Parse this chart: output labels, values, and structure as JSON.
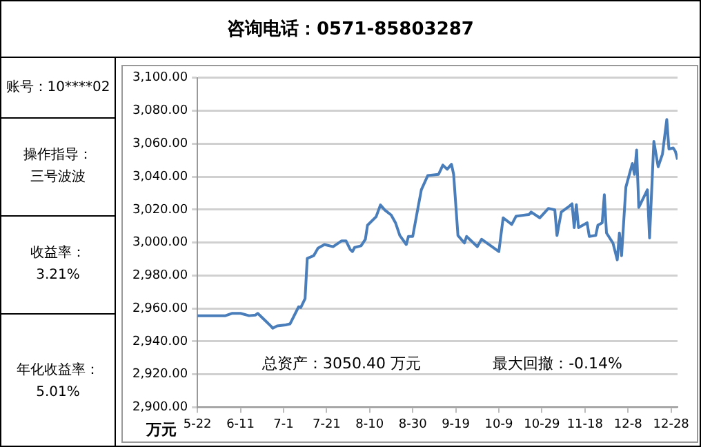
{
  "chart_data": [
    {
      "type": "other",
      "annotations": [
        "账号：10****02",
        "操作指导：",
        "三号波波",
        "收益率：",
        "3.21%",
        "年化收益率：",
        "5.01%"
      ]
    },
    {
      "type": "line",
      "title": "咨询电话：0571-85803287",
      "ylabel": "万元",
      "annotations": [
        "总资产：3050.40 万元",
        "最大回撤：-0.14%"
      ],
      "x": [
        "--05-22",
        "--06-04",
        "--06-07",
        "--06-11",
        "--06-15",
        "--06-18",
        "--06-19",
        "--06-23",
        "--06-25",
        "--06-26",
        "--06-28",
        "--07-02",
        "--07-04",
        "--07-08",
        "--07-09",
        "--07-11",
        "--07-12",
        "--07-15",
        "--07-17",
        "--07-20",
        "--07-24",
        "--07-28",
        "--07-30",
        "--08-01",
        "--08-02",
        "--08-03",
        "--08-06",
        "--08-08",
        "--08-09",
        "--08-13",
        "--08-15",
        "--08-17",
        "--08-20",
        "--08-22",
        "--08-24",
        "--08-27",
        "--08-28",
        "--08-30",
        "--09-01",
        "--09-03",
        "--09-06",
        "--09-11",
        "--09-13",
        "--09-15",
        "--09-17",
        "--09-18",
        "--09-20",
        "--09-23",
        "--09-24",
        "--09-29",
        "--10-01",
        "--10-09",
        "--10-11",
        "--10-15",
        "--10-17",
        "--10-23",
        "--10-24",
        "--10-28",
        "--11-01",
        "--11-04",
        "--11-05",
        "--11-07",
        "--11-10",
        "--11-12",
        "--11-13",
        "--11-14",
        "--11-15",
        "--11-19",
        "--11-20",
        "--11-23",
        "--11-24",
        "--11-26",
        "--11-27",
        "--11-28",
        "--12-01",
        "--12-03",
        "--12-04",
        "--12-05",
        "--12-07",
        "--12-10",
        "--12-11",
        "--12-12",
        "--12-13",
        "--12-17",
        "--12-18",
        "--12-20",
        "--12-22",
        "--12-24",
        "--12-26",
        "--12-27",
        "--12-29",
        "--12-30",
        "--12-31"
      ],
      "series": [
        {
          "color": "#4a7ebb",
          "values": [
            2955.6,
            2955.6,
            2957,
            2957,
            2955.6,
            2956,
            2957,
            2952,
            2949.4,
            2948,
            2949.4,
            2950,
            2950.6,
            2961,
            2960.5,
            2966,
            2990.4,
            2992,
            2996.6,
            2998.8,
            2997.5,
            3001,
            3001,
            2995.7,
            2994.5,
            2997,
            2998,
            3002,
            3010.5,
            3015.7,
            3022.8,
            3019.8,
            3016.7,
            3012,
            3004.3,
            2998.8,
            3003.7,
            3003.7,
            3018,
            3032,
            3040.7,
            3041.4,
            3047,
            3044.5,
            3047.5,
            3041.4,
            3004.3,
            2999.7,
            3003.7,
            2997.5,
            3002,
            2994.5,
            3015,
            3011,
            3016,
            3017,
            3018.5,
            3015,
            3020.7,
            3019.8,
            3004.3,
            3018.5,
            3021.3,
            3023.5,
            3009,
            3023,
            3009,
            3012,
            3003.7,
            3004.3,
            3010.5,
            3012,
            3029,
            3005.8,
            2999.7,
            2989.5,
            3005.8,
            2992,
            3033.6,
            3048,
            3041.4,
            3056.2,
            3021.3,
            3032,
            3002.8,
            3061.4,
            3046,
            3053.7,
            3074.7,
            3056.8,
            3057.4,
            3055.3,
            3050.4
          ]
        }
      ],
      "xlim": [
        "--05-22",
        "--12-31"
      ],
      "xticks": [
        {
          "value": "--05-22",
          "label": "5-22"
        },
        {
          "value": "--06-11",
          "label": "6-11"
        },
        {
          "value": "--07-01",
          "label": "7-1"
        },
        {
          "value": "--07-21",
          "label": "7-21"
        },
        {
          "value": "--08-10",
          "label": "8-10"
        },
        {
          "value": "--08-30",
          "label": "8-30"
        },
        {
          "value": "--09-19",
          "label": "9-19"
        },
        {
          "value": "--10-09",
          "label": "10-9"
        },
        {
          "value": "--10-29",
          "label": "10-29"
        },
        {
          "value": "--11-18",
          "label": "11-18"
        },
        {
          "value": "--12-08",
          "label": "12-8"
        },
        {
          "value": "--12-28",
          "label": "12-28"
        }
      ],
      "ylim": [
        2900,
        3100
      ],
      "yticks": [
        {
          "value": 2900,
          "label": "2,900.00"
        },
        {
          "value": 2920,
          "label": "2,920.00"
        },
        {
          "value": 2940,
          "label": "2,940.00"
        },
        {
          "value": 2960,
          "label": "2,960.00"
        },
        {
          "value": 2980,
          "label": "2,980.00"
        },
        {
          "value": 3000,
          "label": "3,000.00"
        },
        {
          "value": 3020,
          "label": "3,020.00"
        },
        {
          "value": 3040,
          "label": "3,040.00"
        },
        {
          "value": 3060,
          "label": "3,060.00"
        },
        {
          "value": 3080,
          "label": "3,080.00"
        },
        {
          "value": 3100,
          "label": "3,100.00"
        }
      ],
      "grid": "y",
      "legend": false,
      "marker": "none",
      "line_style": "solid"
    }
  ]
}
